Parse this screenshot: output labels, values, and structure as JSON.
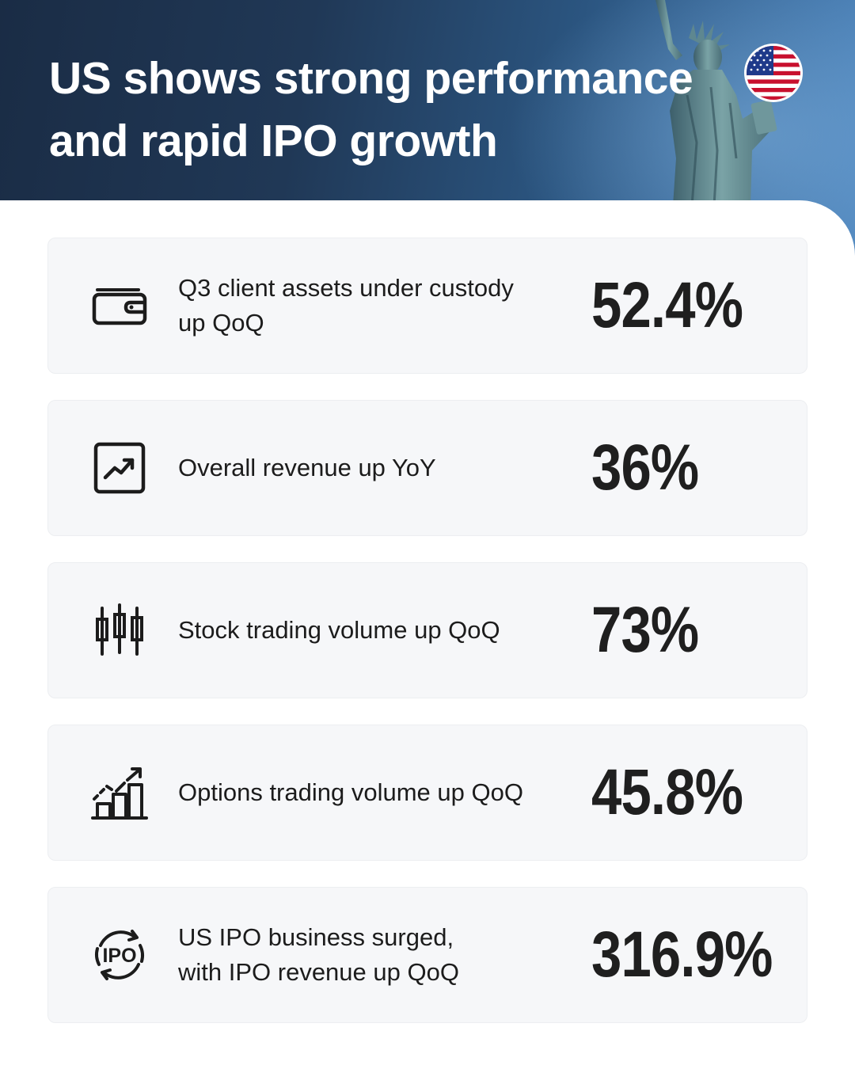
{
  "header": {
    "title_line1": "US shows strong performance",
    "title_line2": "and rapid IPO growth",
    "flag_icon": "us-flag-icon",
    "accent_dark": "#1a2c45",
    "accent_light": "#4f86bd"
  },
  "stats": [
    {
      "icon": "wallet-icon",
      "label_line1": "Q3 client assets under custody",
      "label_line2": "up QoQ",
      "value": "52.4%"
    },
    {
      "icon": "trend-up-chart-icon",
      "label_line1": "Overall revenue up YoY",
      "label_line2": "",
      "value": "36%"
    },
    {
      "icon": "candlestick-icon",
      "label_line1": "Stock trading volume up QoQ",
      "label_line2": "",
      "value": "73%"
    },
    {
      "icon": "bar-growth-chart-icon",
      "label_line1": "Options trading volume up QoQ",
      "label_line2": "",
      "value": "45.8%"
    },
    {
      "icon": "ipo-cycle-icon",
      "icon_text": "IPO",
      "label_line1": "US IPO business surged,",
      "label_line2": "with IPO revenue up QoQ",
      "value": "316.9%"
    }
  ],
  "colors": {
    "card_background": "#f6f7f9",
    "text": "#1c1c1c"
  }
}
